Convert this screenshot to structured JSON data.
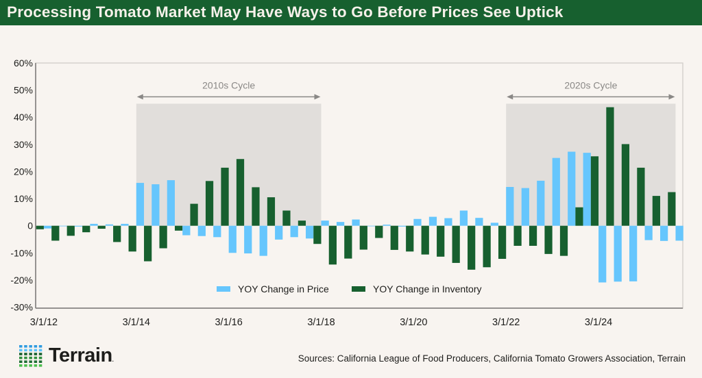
{
  "title": "Processing Tomato Market May Have Ways to Go Before Prices See Uptick",
  "sources": "Sources: California League of Food Producers, California Tomato Growers Association, Terrain",
  "logo": {
    "text": "Terrain",
    "mark": "."
  },
  "colors": {
    "price": "#66c6fd",
    "inventory": "#17602f",
    "title_bar": "#17602f",
    "shade": "#e1dedb",
    "background": "#f8f4f0"
  },
  "chart_data": {
    "type": "bar",
    "ylim": [
      -30,
      60
    ],
    "yticks": [
      60,
      50,
      40,
      30,
      20,
      10,
      0,
      -10,
      -20,
      -30
    ],
    "ytick_labels": [
      "60%",
      "50%",
      "40%",
      "30%",
      "20%",
      "10%",
      "0",
      "-10%",
      "-20%",
      "-30%"
    ],
    "categories": [
      "3/1/12",
      "",
      "",
      "",
      "",
      "",
      "3/1/14",
      "",
      "",
      "",
      "",
      "",
      "3/1/16",
      "",
      "",
      "",
      "",
      "",
      "3/1/18",
      "",
      "",
      "",
      "",
      "",
      "3/1/20",
      "",
      "",
      "",
      "",
      "",
      "3/1/22",
      "",
      "",
      "",
      "",
      "",
      "3/1/24",
      "",
      "",
      "",
      "",
      ""
    ],
    "grid": false,
    "legend_position": "bottom-center",
    "series": [
      {
        "name": "YOY Change in Inventory",
        "values": [
          -1.3,
          -5.5,
          -3.7,
          -2.4,
          -1.1,
          -6.0,
          -9.5,
          -13.1,
          -8.3,
          -1.8,
          8.1,
          16.5,
          21.4,
          24.6,
          14.2,
          10.5,
          5.6,
          1.9,
          -6.7,
          -14.3,
          -12.1,
          -8.8,
          -4.5,
          -8.9,
          -9.5,
          -10.6,
          -11.4,
          -13.7,
          -16.2,
          -15.3,
          -12.2,
          -7.4,
          -7.4,
          -10.4,
          -11.1,
          6.8,
          25.6,
          43.7,
          30.1,
          21.4,
          11.0,
          12.4
        ]
      },
      {
        "name": "YOY Change in Price",
        "values": [
          -1.0,
          -0.2,
          -0.3,
          0.7,
          0.5,
          0.7,
          15.8,
          15.3,
          16.8,
          -3.5,
          -3.8,
          -4.2,
          -10.0,
          -10.2,
          -11.1,
          -5.1,
          -4.2,
          -4.7,
          1.9,
          1.4,
          2.3,
          -0.1,
          0.4,
          -0.3,
          2.5,
          3.3,
          2.8,
          5.6,
          2.9,
          1.1,
          14.3,
          13.9,
          16.6,
          25.0,
          27.3,
          26.9,
          -20.9,
          -20.6,
          -20.5,
          -5.3,
          -5.6,
          -5.5
        ]
      }
    ],
    "legend": [
      {
        "name": "YOY Change in Price",
        "color": "#66c6fd"
      },
      {
        "name": "YOY Change in Inventory",
        "color": "#17602f"
      }
    ],
    "annotations": [
      {
        "label": "2010s Cycle",
        "from_category": 6,
        "to_category": 18,
        "shade_top": 45
      },
      {
        "label": "2020s Cycle",
        "from_category": 30,
        "to_category": 41,
        "shade_top": 45
      }
    ]
  }
}
